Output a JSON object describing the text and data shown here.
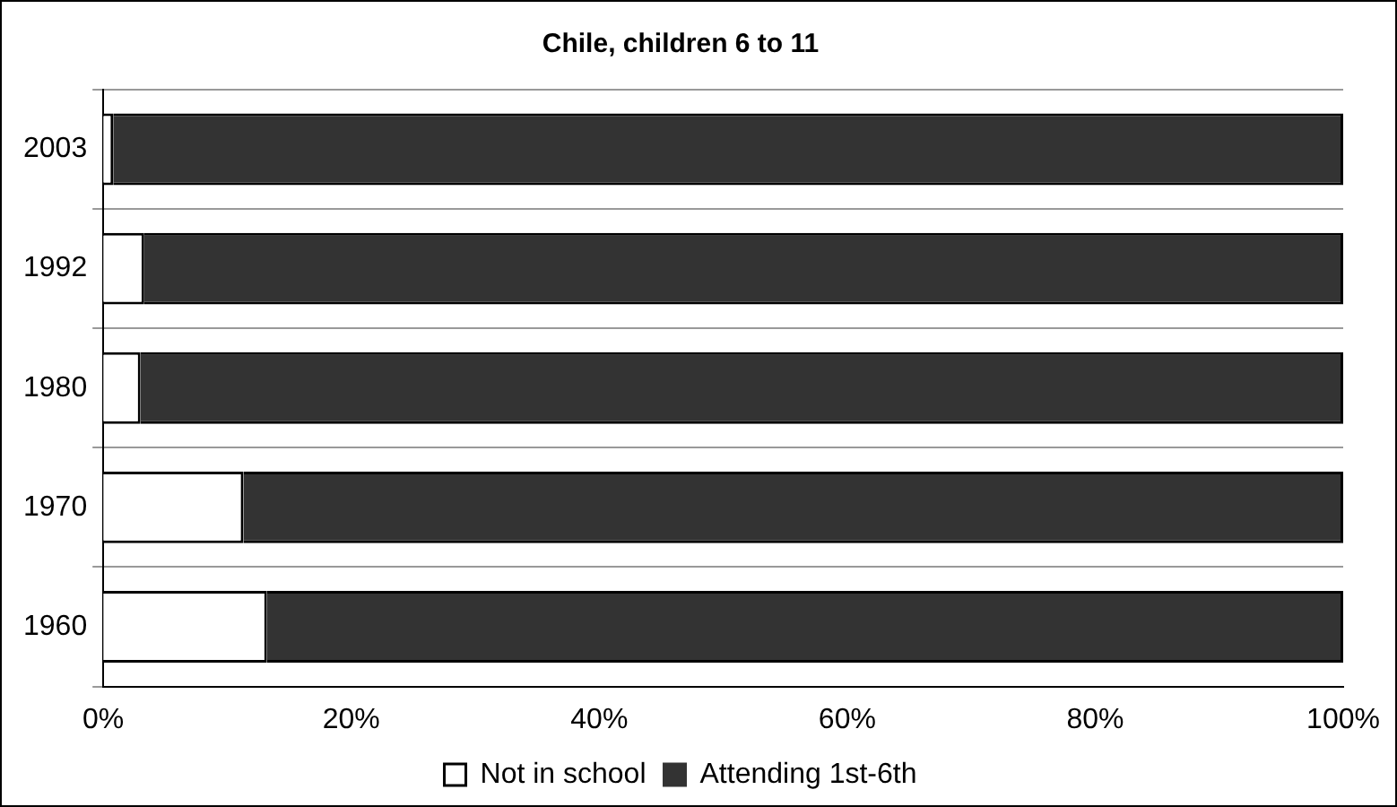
{
  "chart_data": {
    "type": "bar",
    "title": "Chile, children 6 to 11",
    "orientation": "horizontal",
    "stacked": true,
    "categories": [
      "2003",
      "1992",
      "1980",
      "1970",
      "1960"
    ],
    "series": [
      {
        "name": "Not in school",
        "color": "#ffffff",
        "values": [
          0.8,
          3.3,
          3.0,
          11.3,
          13.2
        ]
      },
      {
        "name": "Attending 1st-6th",
        "color": "#333333",
        "values": [
          99.2,
          96.7,
          97.0,
          88.7,
          86.8
        ]
      }
    ],
    "xlim": [
      0,
      100
    ],
    "xticks": [
      {
        "value": 0,
        "label": "0%"
      },
      {
        "value": 20,
        "label": "20%"
      },
      {
        "value": 40,
        "label": "40%"
      },
      {
        "value": 60,
        "label": "60%"
      },
      {
        "value": 80,
        "label": "80%"
      },
      {
        "value": 100,
        "label": "100%"
      }
    ],
    "grid": "y",
    "legend": "bottom"
  }
}
